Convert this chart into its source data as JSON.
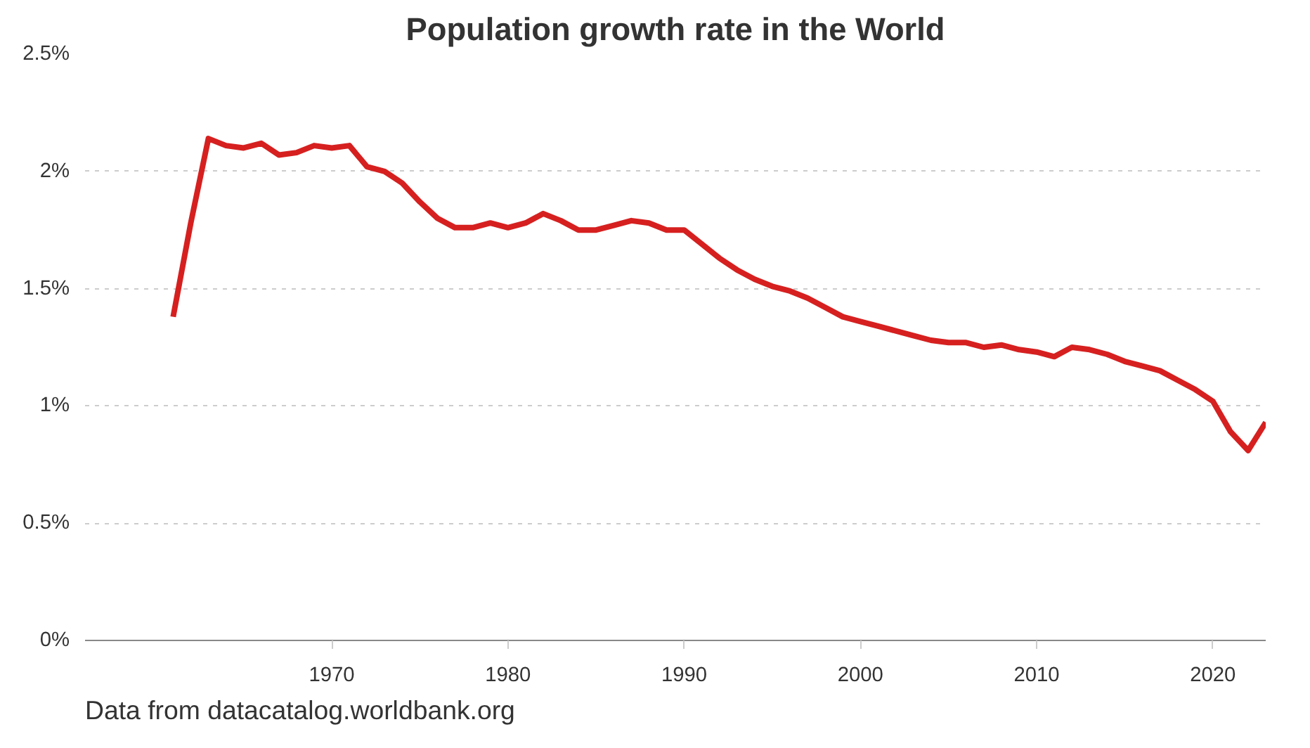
{
  "chart_data": {
    "type": "line",
    "title": "Population growth rate in the World",
    "x": [
      1961,
      1962,
      1963,
      1964,
      1965,
      1966,
      1967,
      1968,
      1969,
      1970,
      1971,
      1972,
      1973,
      1974,
      1975,
      1976,
      1977,
      1978,
      1979,
      1980,
      1981,
      1982,
      1983,
      1984,
      1985,
      1986,
      1987,
      1988,
      1989,
      1990,
      1991,
      1992,
      1993,
      1994,
      1995,
      1996,
      1997,
      1998,
      1999,
      2000,
      2001,
      2002,
      2003,
      2004,
      2005,
      2006,
      2007,
      2008,
      2009,
      2010,
      2011,
      2012,
      2013,
      2014,
      2015,
      2016,
      2017,
      2018,
      2019,
      2020,
      2021,
      2022,
      2023
    ],
    "series": [
      {
        "color": "#d62020",
        "values": [
          1.38,
          1.78,
          2.14,
          2.11,
          2.1,
          2.12,
          2.07,
          2.08,
          2.11,
          2.1,
          2.11,
          2.02,
          2.0,
          1.95,
          1.87,
          1.8,
          1.76,
          1.76,
          1.78,
          1.76,
          1.78,
          1.82,
          1.79,
          1.75,
          1.75,
          1.77,
          1.79,
          1.78,
          1.75,
          1.75,
          1.69,
          1.63,
          1.58,
          1.54,
          1.51,
          1.49,
          1.46,
          1.42,
          1.38,
          1.36,
          1.34,
          1.32,
          1.3,
          1.28,
          1.27,
          1.27,
          1.25,
          1.26,
          1.24,
          1.23,
          1.21,
          1.25,
          1.24,
          1.22,
          1.19,
          1.17,
          1.15,
          1.11,
          1.07,
          1.02,
          0.89,
          0.81,
          0.93
        ]
      }
    ],
    "xlim": [
      1956,
      2023
    ],
    "xticks": [
      1970,
      1980,
      1990,
      2000,
      2010,
      2020
    ],
    "ylim": [
      0,
      2.5
    ],
    "yticks": [
      {
        "value": 0,
        "label": "0%"
      },
      {
        "value": 0.5,
        "label": "0.5%"
      },
      {
        "value": 1,
        "label": "1%"
      },
      {
        "value": 1.5,
        "label": "1.5%"
      },
      {
        "value": 2,
        "label": "2%"
      },
      {
        "value": 2.5,
        "label": "2.5%"
      }
    ],
    "grid": "y",
    "line_style": "solid",
    "annotations": [
      "Data from datacatalog.worldbank.org"
    ]
  }
}
